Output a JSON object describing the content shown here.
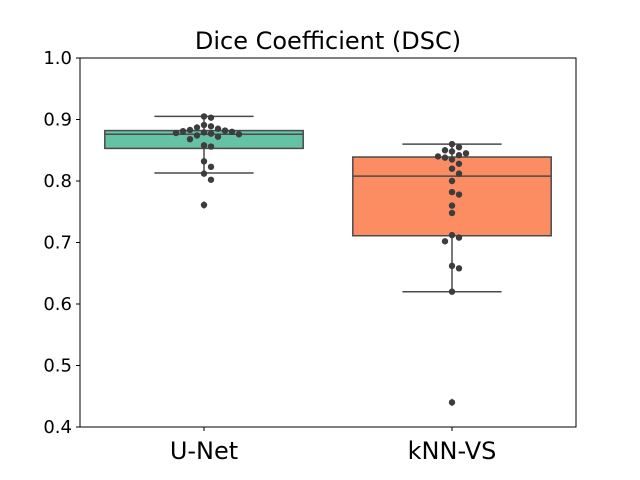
{
  "chart_data": {
    "type": "box",
    "title": "Dice Coefficient (DSC)",
    "xlabel": "",
    "ylabel": "",
    "ylim": [
      0.4,
      1.0
    ],
    "yticks": [
      "0.4",
      "0.5",
      "0.6",
      "0.7",
      "0.8",
      "0.9",
      "1.0"
    ],
    "grid": false,
    "legend": "none",
    "categories": [
      "U-Net",
      "kNN-VS"
    ],
    "boxes": [
      {
        "category": "U-Net",
        "color": "#66c2a5",
        "whisker_low": 0.813,
        "q1": 0.853,
        "median": 0.876,
        "q3": 0.882,
        "whisker_high": 0.905,
        "outliers": [
          0.761
        ],
        "points": [
          0.905,
          0.903,
          0.891,
          0.889,
          0.887,
          0.885,
          0.883,
          0.882,
          0.881,
          0.88,
          0.879,
          0.878,
          0.877,
          0.876,
          0.874,
          0.872,
          0.868,
          0.858,
          0.856,
          0.832,
          0.823,
          0.812,
          0.802,
          0.761
        ]
      },
      {
        "category": "kNN-VS",
        "color": "#fc8d62",
        "whisker_low": 0.62,
        "q1": 0.711,
        "median": 0.808,
        "q3": 0.839,
        "whisker_high": 0.86,
        "outliers": [
          0.44
        ],
        "points": [
          0.86,
          0.855,
          0.85,
          0.848,
          0.845,
          0.842,
          0.84,
          0.838,
          0.835,
          0.828,
          0.82,
          0.812,
          0.8,
          0.782,
          0.778,
          0.76,
          0.748,
          0.712,
          0.708,
          0.702,
          0.662,
          0.658,
          0.62,
          0.44
        ]
      }
    ]
  }
}
